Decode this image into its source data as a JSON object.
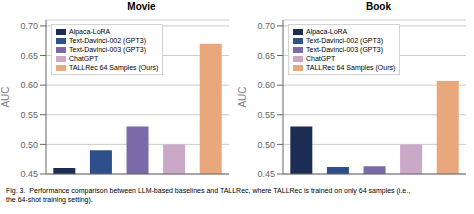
{
  "chart_data": [
    {
      "type": "bar",
      "title": "Movie",
      "ylabel": "AUC",
      "categories": [
        "Alpaca-LoRA",
        "Text-Davinci-002 (GPT3)",
        "Text-Davinci-003 (GPT3)",
        "ChatGPT",
        "TALLRec 64 Samples (Ours)"
      ],
      "values": [
        0.46,
        0.49,
        0.53,
        0.5,
        0.67
      ],
      "colors": [
        "#1b2d52",
        "#2e4f8c",
        "#7b6aaa",
        "#c9a8c8",
        "#e8a87c"
      ],
      "ylim": [
        0.45,
        0.71
      ],
      "yticks": [
        0.45,
        {
          "value": 0.5,
          "label": "0.50"
        },
        0.55,
        {
          "value": 0.6,
          "label": "0.60"
        },
        0.65,
        {
          "value": 0.7,
          "label": "0.70"
        }
      ],
      "grid": true,
      "legend": "upper left",
      "tick_labels": "y"
    },
    {
      "type": "bar",
      "title": "Book",
      "ylabel": "AUC",
      "categories": [
        "Alpaca-LoRA",
        "Text-Davinci-002 (GPT3)",
        "Text-Davinci-003 (GPT3)",
        "ChatGPT",
        "TALLRec 64 Samples (Ours)"
      ],
      "values": [
        0.53,
        0.462,
        0.463,
        0.5,
        0.607
      ],
      "colors": [
        "#1b2d52",
        "#2e4f8c",
        "#7b6aaa",
        "#c9a8c8",
        "#e8a87c"
      ],
      "ylim": [
        0.45,
        0.71
      ],
      "yticks": [
        0.45,
        {
          "value": 0.5,
          "label": "0.50"
        },
        0.55,
        {
          "value": 0.6,
          "label": "0.60"
        },
        0.65,
        {
          "value": 0.7,
          "label": "0.70"
        }
      ],
      "grid": true,
      "legend": "upper left",
      "tick_labels": "y"
    }
  ],
  "annotations": [
    "Fig. 3.  Performance comparison between LLM-based baselines and TALLRec, where TALLRec is trained on only 64 samples (i.e.,\nthe 64-shot training setting)."
  ]
}
